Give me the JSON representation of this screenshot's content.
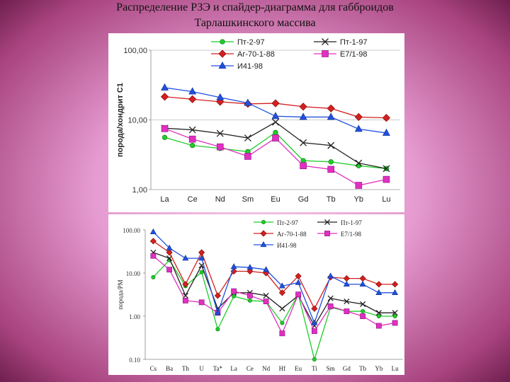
{
  "slide": {
    "title_line1": "Распределение РЗЭ и спайдер-диаграмма для габброидов",
    "title_line2": "Тарлашкинского массива"
  },
  "chart_data": [
    {
      "type": "line",
      "ylabel": "порода/хондрит С1",
      "xlabel": "",
      "yscale": "log",
      "ylim": [
        1,
        100
      ],
      "yticks": [
        "1,00",
        "10,00",
        "100,00"
      ],
      "categories": [
        "La",
        "Ce",
        "Nd",
        "Sm",
        "Eu",
        "Gd",
        "Tb",
        "Yb",
        "Lu"
      ],
      "legend_position": "top",
      "grid": true,
      "series": [
        {
          "name": "Пт-2-97",
          "color": "#1fcc2a",
          "marker": "circle",
          "values": [
            5.6,
            4.3,
            3.9,
            3.5,
            6.6,
            2.6,
            2.5,
            2.2,
            2.0
          ]
        },
        {
          "name": "Пт-1-97",
          "color": "#222222",
          "marker": "x",
          "values": [
            7.6,
            7.2,
            6.4,
            5.5,
            9.3,
            4.7,
            4.3,
            2.4,
            2.0
          ]
        },
        {
          "name": "Аг-70-1-88",
          "color": "#d42020",
          "marker": "diamond",
          "values": [
            21.5,
            19.8,
            18.2,
            17.0,
            17.3,
            15.5,
            14.6,
            11.0,
            10.7
          ]
        },
        {
          "name": "Е7/1-98",
          "color": "#e030c0",
          "marker": "square",
          "values": [
            7.5,
            5.3,
            4.1,
            3.0,
            5.5,
            2.2,
            1.95,
            1.15,
            1.4
          ]
        },
        {
          "name": "И41-98",
          "color": "#2050e0",
          "marker": "triangle",
          "values": [
            29.0,
            25.5,
            21.0,
            17.5,
            11.3,
            11.0,
            11.0,
            7.4,
            6.5
          ]
        }
      ]
    },
    {
      "type": "line",
      "ylabel": "порода/РМ",
      "xlabel": "",
      "yscale": "log",
      "ylim": [
        0.1,
        100
      ],
      "yticks": [
        "0.10",
        "1.00",
        "10.00",
        "100.00"
      ],
      "categories": [
        "Cs",
        "Ba",
        "Th",
        "U",
        "Ta*",
        "La",
        "Ce",
        "Nd",
        "Hf",
        "Eu",
        "Ti",
        "Sm",
        "Gd",
        "Tb",
        "Yb",
        "Lu"
      ],
      "legend_position": "top",
      "grid": false,
      "series": [
        {
          "name": "Пт-2-97",
          "color": "#1fcc2a",
          "marker": "circle",
          "values": [
            8.0,
            20.0,
            5.0,
            10.5,
            0.5,
            2.9,
            2.3,
            2.2,
            0.7,
            3.2,
            0.1,
            1.6,
            1.3,
            1.3,
            1.0,
            1.0
          ]
        },
        {
          "name": "Пт-1-97",
          "color": "#222222",
          "marker": "x",
          "values": [
            30.0,
            22.0,
            3.0,
            15.0,
            1.5,
            3.5,
            3.5,
            3.0,
            1.5,
            3.0,
            0.6,
            2.6,
            2.2,
            1.9,
            1.2,
            1.2
          ]
        },
        {
          "name": "Аг-70-1-88",
          "color": "#d42020",
          "marker": "diamond",
          "values": [
            55.0,
            30.0,
            5.5,
            30.0,
            3.0,
            11.0,
            11.0,
            10.0,
            3.5,
            8.5,
            1.5,
            8.0,
            7.5,
            7.5,
            5.5,
            5.5
          ]
        },
        {
          "name": "Е7/1-98",
          "color": "#e030c0",
          "marker": "square",
          "values": [
            25.0,
            12.0,
            2.3,
            2.1,
            1.2,
            3.8,
            3.0,
            2.2,
            0.4,
            3.2,
            0.45,
            1.7,
            1.3,
            1.0,
            0.6,
            0.7
          ]
        },
        {
          "name": "И41-98",
          "color": "#2050e0",
          "marker": "triangle",
          "values": [
            90.0,
            38.0,
            22.0,
            22.0,
            1.2,
            14.0,
            13.5,
            12.0,
            5.0,
            6.0,
            0.7,
            8.5,
            5.5,
            5.5,
            3.5,
            3.5
          ]
        }
      ]
    }
  ]
}
